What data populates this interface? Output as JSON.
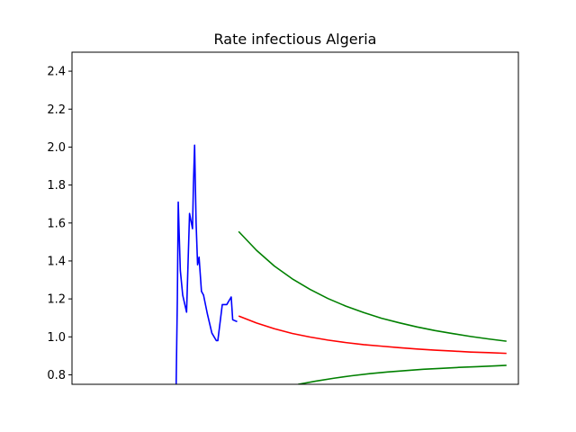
{
  "chart_data": {
    "type": "line",
    "title": "Rate infectious Algeria",
    "xlabel": "",
    "ylabel": "",
    "ylim": [
      0.75,
      2.5
    ],
    "xlim": [
      0,
      150
    ],
    "x_ticks_shown": false,
    "y_ticks": [
      0.8,
      1.0,
      1.2,
      1.4,
      1.6,
      1.8,
      2.0,
      2.2,
      2.4
    ],
    "y_tick_labels": [
      "0.8",
      "1.0",
      "1.2",
      "1.4",
      "1.6",
      "1.8",
      "2.0",
      "2.2",
      "2.4"
    ],
    "grid": false,
    "legend": "none",
    "series": [
      {
        "color": "#0000ff",
        "role": "observed",
        "x": [
          35.0,
          35.4,
          35.7,
          36.0,
          36.4,
          37.2,
          38.5,
          39.5,
          40.5,
          40.8,
          41.2,
          41.7,
          42.2,
          42.7,
          43.5,
          44.2,
          45.5,
          47.0,
          48.5,
          49.0,
          50.5,
          51.0,
          52.0,
          53.5,
          54.0,
          55.5
        ],
        "y": [
          0.75,
          1.2,
          1.71,
          1.55,
          1.35,
          1.22,
          1.13,
          1.65,
          1.57,
          1.8,
          2.01,
          1.6,
          1.38,
          1.42,
          1.24,
          1.22,
          1.12,
          1.02,
          0.98,
          0.98,
          1.17,
          1.17,
          1.17,
          1.21,
          1.09,
          1.08
        ]
      },
      {
        "color": "#ff0000",
        "role": "projection",
        "x": [
          56,
          62,
          68,
          74,
          80,
          86,
          92,
          98,
          104,
          110,
          116,
          122,
          128,
          134,
          140,
          146
        ],
        "y": [
          1.11,
          1.073,
          1.043,
          1.018,
          0.999,
          0.983,
          0.97,
          0.959,
          0.951,
          0.943,
          0.936,
          0.93,
          0.925,
          0.92,
          0.917,
          0.913
        ]
      },
      {
        "color": "#008000",
        "role": "upper bound",
        "x": [
          56,
          62,
          68,
          74,
          80,
          86,
          92,
          98,
          104,
          110,
          116,
          122,
          128,
          134,
          140,
          146
        ],
        "y": [
          1.555,
          1.456,
          1.373,
          1.306,
          1.25,
          1.202,
          1.162,
          1.128,
          1.098,
          1.074,
          1.052,
          1.033,
          1.017,
          1.002,
          0.989,
          0.977
        ]
      },
      {
        "color": "#008000",
        "role": "lower bound",
        "x": [
          76,
          82,
          88,
          94,
          100,
          106,
          112,
          118,
          124,
          130,
          136,
          142,
          146
        ],
        "y": [
          0.75,
          0.767,
          0.782,
          0.795,
          0.806,
          0.815,
          0.822,
          0.829,
          0.834,
          0.839,
          0.843,
          0.847,
          0.85
        ]
      }
    ]
  }
}
